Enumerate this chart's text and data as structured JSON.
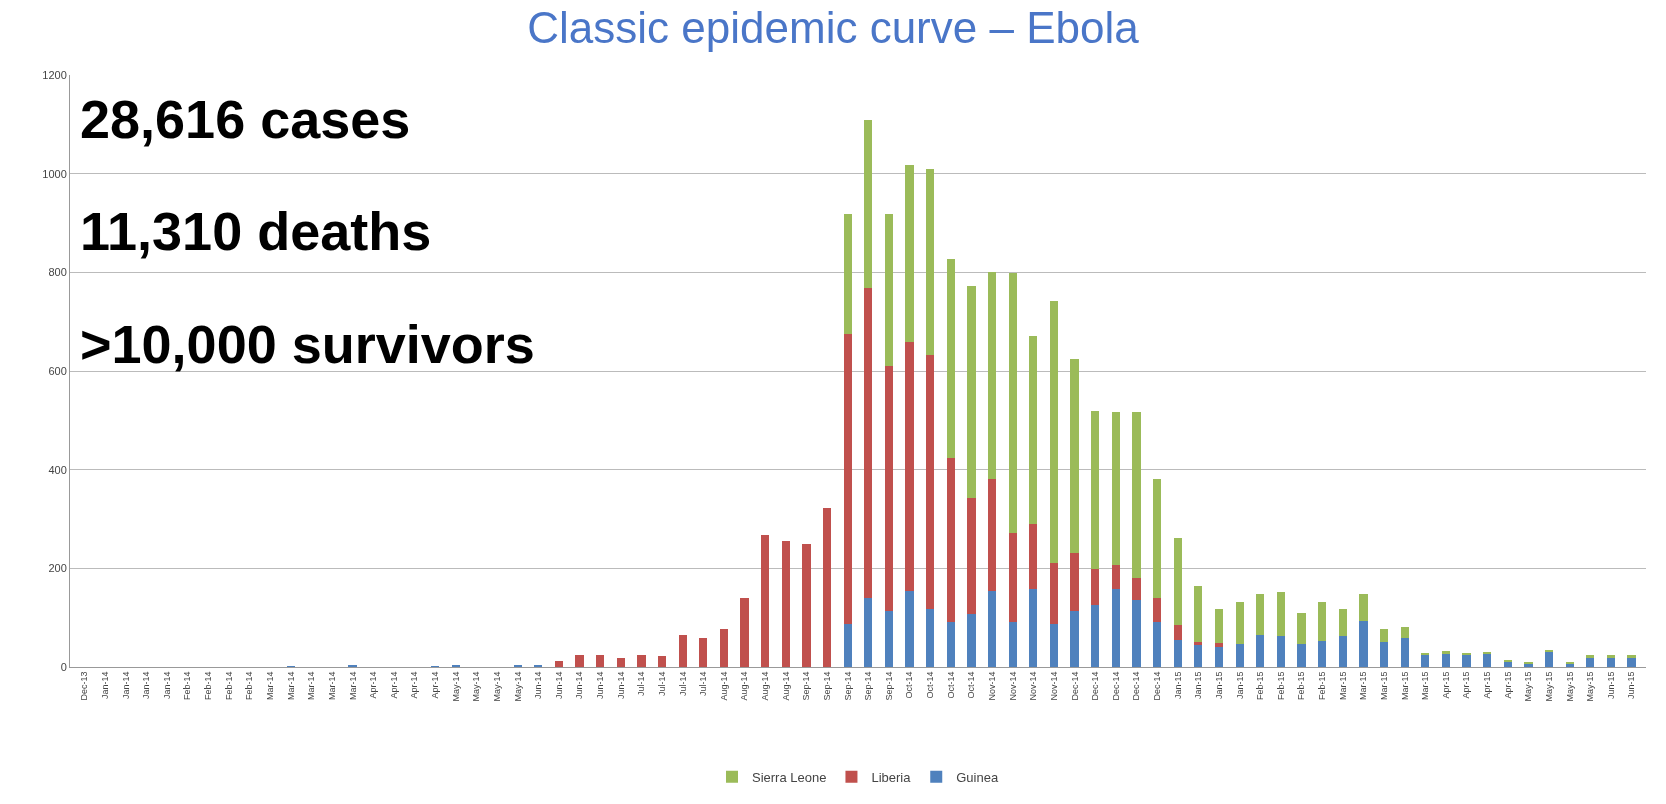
{
  "chart_data": {
    "type": "bar",
    "stacked": true,
    "title": "Classic epidemic curve – Ebola",
    "annotations": [
      "28,616 cases",
      "11,310 deaths",
      ">10,000 survivors"
    ],
    "categories": [
      "Dec-13",
      "Jan-14",
      "Jan-14",
      "Jan-14",
      "Jan-14",
      "Feb-14",
      "Feb-14",
      "Feb-14",
      "Feb-14",
      "Mar-14",
      "Mar-14",
      "Mar-14",
      "Mar-14",
      "Mar-14",
      "Apr-14",
      "Apr-14",
      "Apr-14",
      "Apr-14",
      "May-14",
      "May-14",
      "May-14",
      "May-14",
      "Jun-14",
      "Jun-14",
      "Jun-14",
      "Jun-14",
      "Jun-14",
      "Jul-14",
      "Jul-14",
      "Jul-14",
      "Jul-14",
      "Aug-14",
      "Aug-14",
      "Aug-14",
      "Aug-14",
      "Sep-14",
      "Sep-14",
      "Sep-14",
      "Sep-14",
      "Sep-14",
      "Oct-14",
      "Oct-14",
      "Oct-14",
      "Oct-14",
      "Nov-14",
      "Nov-14",
      "Nov-14",
      "Nov-14",
      "Dec-14",
      "Dec-14",
      "Dec-14",
      "Dec-14",
      "Dec-14",
      "Jan-15",
      "Jan-15",
      "Jan-15",
      "Jan-15",
      "Feb-15",
      "Feb-15",
      "Feb-15",
      "Feb-15",
      "Mar-15",
      "Mar-15",
      "Mar-15",
      "Mar-15",
      "Mar-15",
      "Apr-15",
      "Apr-15",
      "Apr-15",
      "Apr-15",
      "May-15",
      "May-15",
      "May-15",
      "May-15",
      "Jun-15",
      "Jun-15"
    ],
    "series": [
      {
        "name": "Guinea",
        "color": "#4f81bd",
        "values": [
          0,
          0,
          0,
          0,
          0,
          0,
          0,
          0,
          0,
          0,
          2,
          0,
          0,
          3,
          0,
          0,
          0,
          2,
          3,
          0,
          0,
          4,
          5,
          0,
          0,
          0,
          0,
          0,
          0,
          0,
          0,
          0,
          0,
          0,
          0,
          0,
          0,
          88,
          140,
          114,
          154,
          118,
          92,
          107,
          154,
          92,
          158,
          88,
          114,
          125,
          158,
          136,
          92,
          55,
          44,
          40,
          47,
          65,
          62,
          47,
          53,
          62,
          94,
          50,
          59,
          24,
          27,
          24,
          26,
          12,
          7,
          30,
          7,
          20,
          20,
          20
        ]
      },
      {
        "name": "Liberia",
        "color": "#c0504d",
        "values": [
          0,
          0,
          0,
          0,
          0,
          0,
          0,
          0,
          0,
          0,
          0,
          0,
          0,
          0,
          0,
          0,
          0,
          0,
          0,
          0,
          0,
          0,
          0,
          12,
          25,
          25,
          18,
          25,
          22,
          65,
          58,
          78,
          140,
          268,
          255,
          250,
          322,
          588,
          628,
          496,
          504,
          514,
          331,
          235,
          228,
          180,
          132,
          122,
          118,
          74,
          48,
          44,
          48,
          30,
          7,
          8,
          0,
          0,
          0,
          0,
          0,
          0,
          0,
          0,
          0,
          0,
          0,
          0,
          0,
          0,
          0,
          0,
          0,
          0,
          0,
          0
        ]
      },
      {
        "name": "Sierra Leone",
        "color": "#9bbb59",
        "values": [
          0,
          0,
          0,
          0,
          0,
          0,
          0,
          0,
          0,
          0,
          0,
          0,
          0,
          0,
          0,
          0,
          0,
          0,
          0,
          0,
          0,
          0,
          0,
          0,
          0,
          0,
          0,
          0,
          0,
          0,
          0,
          0,
          0,
          0,
          0,
          0,
          0,
          243,
          341,
          309,
          360,
          377,
          404,
          430,
          418,
          526,
          381,
          531,
          393,
          319,
          310,
          336,
          242,
          176,
          114,
          70,
          85,
          82,
          91,
          63,
          79,
          56,
          53,
          28,
          23,
          5,
          5,
          5,
          5,
          3,
          2,
          5,
          2,
          4,
          4,
          4
        ]
      }
    ],
    "ylim": [
      0,
      1200
    ],
    "yticks": [
      0,
      200,
      400,
      600,
      800,
      1000,
      1200
    ],
    "grid": "y",
    "legend": "bottom"
  }
}
